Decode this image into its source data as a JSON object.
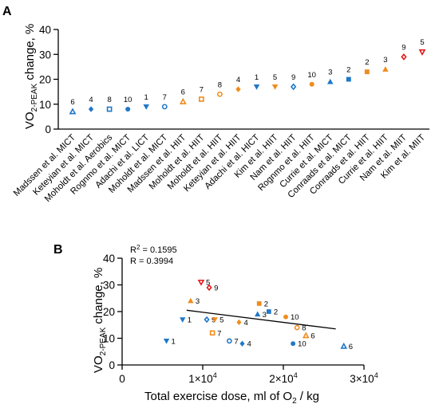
{
  "colors": {
    "blue": "#1f78c8",
    "orange": "#f08c1e",
    "red": "#e31a1c",
    "axis": "#000000",
    "fit_line": "#000000"
  },
  "chart_data": [
    {
      "panel": "A",
      "type": "scatter",
      "ylabel": "VO2-PEAK change, %",
      "ylabel_main": "VO",
      "ylabel_sub": "2-PEAK",
      "ylabel_rest": " change, %",
      "ylim": [
        0,
        40
      ],
      "yticks": [
        "0",
        "10",
        "20",
        "30",
        "40"
      ],
      "grid": false,
      "categories": [
        "Madssen et al. MICT",
        "Keteyian et al. MICT",
        "Moholdt et al. Aerobics",
        "Rognmo et al. MICT",
        "Adachi et al. LICT",
        "Moholdt et al. MICT",
        "Madssen et al. HIIT",
        "Moholdt et al. HIIT",
        "Moholdt et al. HIIT",
        "Keteyian et al. HIIT",
        "Adachi et al. HICT",
        "Kim et al. HIIT",
        "Nam et al. HIIT",
        "Rognmo et al. HIIT",
        "Currie et al. MICT",
        "Conraads et al. MICT",
        "Conraads et al. HIIT",
        "Currie et al. HIIT",
        "Nam et al. MIIT",
        "Kim et al. MIIT"
      ],
      "values": [
        7,
        8,
        8,
        8,
        9,
        9,
        11,
        12,
        14,
        16,
        17,
        17,
        17,
        18,
        19,
        20,
        23,
        24,
        29,
        31
      ],
      "n_labels": [
        "6",
        "4",
        "8",
        "10",
        "1",
        "7",
        "6",
        "7",
        "8",
        "4",
        "1",
        "5",
        "9",
        "10",
        "3",
        "2",
        "2",
        "3",
        "9",
        "5"
      ],
      "marker_colors": [
        "blue",
        "blue",
        "blue",
        "blue",
        "blue",
        "blue",
        "orange",
        "orange",
        "orange",
        "orange",
        "blue",
        "orange",
        "blue",
        "orange",
        "blue",
        "blue",
        "orange",
        "orange",
        "red",
        "red"
      ],
      "marker_shapes": [
        "triangle-open",
        "diamond",
        "square-open",
        "circle",
        "triangle-down",
        "circle-open",
        "triangle-open",
        "square-open",
        "circle-open",
        "diamond",
        "triangle-down",
        "triangle-down",
        "diamond-open",
        "circle",
        "triangle",
        "square",
        "square",
        "triangle",
        "diamond-open",
        "triangle-down-open"
      ]
    },
    {
      "panel": "B",
      "type": "scatter",
      "xlabel": "Total exercise dose, ml of O2 / kg",
      "xlabel_main": "Total exercise dose, ml of O",
      "xlabel_sub": "2",
      "xlabel_rest": " / kg",
      "ylabel": "VO2-PEAK change, %",
      "ylabel_main": "VO",
      "ylabel_sub": "2-PEAK",
      "ylabel_rest": " change, %",
      "xlim": [
        0,
        30000
      ],
      "ylim": [
        0,
        40
      ],
      "xticks": [
        {
          "value": 0,
          "base": "0",
          "exp": ""
        },
        {
          "value": 10000,
          "base": "1×10",
          "exp": "4"
        },
        {
          "value": 20000,
          "base": "2×10",
          "exp": "4"
        },
        {
          "value": 30000,
          "base": "3×10",
          "exp": "4"
        }
      ],
      "yticks": [
        "0",
        "10",
        "20",
        "30",
        "40"
      ],
      "r2_label": "R",
      "r2_sup": "2",
      "r2_value": " = 0.1595",
      "r_text": "R = 0.3994",
      "fit_line": {
        "x": [
          8000,
          26500
        ],
        "y": [
          20.5,
          13.5
        ]
      },
      "points": [
        {
          "x": 9800,
          "y": 31,
          "label": "5",
          "color": "red",
          "shape": "triangle-down-open"
        },
        {
          "x": 10800,
          "y": 29,
          "label": "9",
          "color": "red",
          "shape": "diamond-open"
        },
        {
          "x": 8500,
          "y": 24,
          "label": "3",
          "color": "orange",
          "shape": "triangle"
        },
        {
          "x": 17000,
          "y": 23,
          "label": "2",
          "color": "orange",
          "shape": "square"
        },
        {
          "x": 18200,
          "y": 20,
          "label": "2",
          "color": "blue",
          "shape": "square"
        },
        {
          "x": 16800,
          "y": 19,
          "label": "3",
          "color": "blue",
          "shape": "triangle"
        },
        {
          "x": 20300,
          "y": 18,
          "label": "10",
          "color": "orange",
          "shape": "circle"
        },
        {
          "x": 7500,
          "y": 17,
          "label": "1",
          "color": "blue",
          "shape": "triangle-down"
        },
        {
          "x": 10500,
          "y": 17,
          "label": "9",
          "color": "blue",
          "shape": "diamond-open"
        },
        {
          "x": 11500,
          "y": 17,
          "label": "5",
          "color": "orange",
          "shape": "triangle-down"
        },
        {
          "x": 14500,
          "y": 16,
          "label": "4",
          "color": "orange",
          "shape": "diamond"
        },
        {
          "x": 21700,
          "y": 14,
          "label": "8",
          "color": "orange",
          "shape": "circle-open"
        },
        {
          "x": 11200,
          "y": 12,
          "label": "7",
          "color": "orange",
          "shape": "square-open"
        },
        {
          "x": 22800,
          "y": 11,
          "label": "6",
          "color": "orange",
          "shape": "triangle-open"
        },
        {
          "x": 5500,
          "y": 9,
          "label": "1",
          "color": "blue",
          "shape": "triangle-down"
        },
        {
          "x": 13300,
          "y": 9,
          "label": "7",
          "color": "blue",
          "shape": "circle-open"
        },
        {
          "x": 14900,
          "y": 8,
          "label": "4",
          "color": "blue",
          "shape": "diamond"
        },
        {
          "x": 21200,
          "y": 8,
          "label": "10",
          "color": "blue",
          "shape": "circle"
        },
        {
          "x": 27500,
          "y": 7,
          "label": "6",
          "color": "blue",
          "shape": "triangle-open"
        }
      ]
    }
  ],
  "panels": {
    "a_letter": "A",
    "b_letter": "B"
  }
}
